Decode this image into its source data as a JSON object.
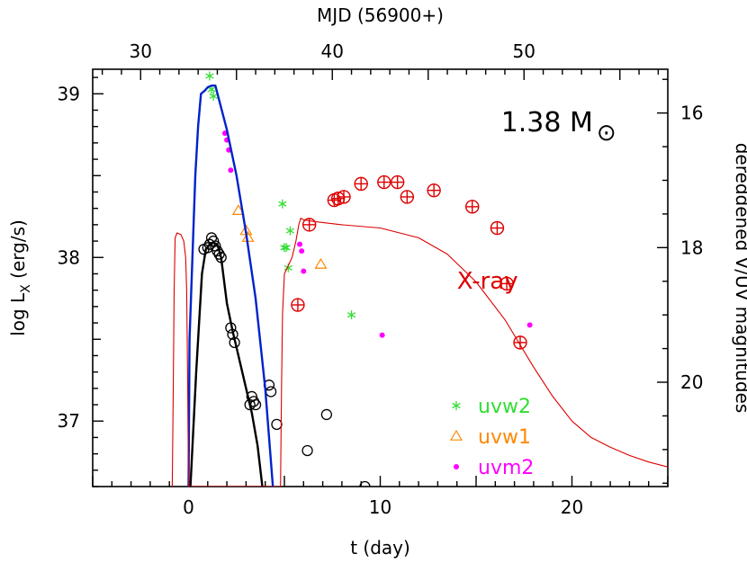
{
  "chart_data": {
    "type": "scatter",
    "xlabel": "t (day)",
    "ylabel_left": "log L_X (erg/s)",
    "ylabel_right": "dereddened V/UV magnitudes",
    "top_axis_label": "MJD (56900+)",
    "xlim": [
      -5,
      25
    ],
    "ylim_left": [
      36.6,
      39.15
    ],
    "ylim_right_mag": [
      21.55,
      15.35
    ],
    "x_ticks": [
      0,
      10,
      20
    ],
    "y_left_ticks": [
      37,
      38,
      39
    ],
    "y_right_ticks": [
      16,
      18,
      20
    ],
    "top_axis_offset": 32.5,
    "top_ticks": [
      30,
      40,
      50
    ],
    "mass_label": {
      "text": "1.38 M",
      "symbol": "⊙"
    },
    "xray_label": "X-ray",
    "legend": [
      {
        "name": "uvw2",
        "marker": "asterisk",
        "color": "#33dd33"
      },
      {
        "name": "uvw1",
        "marker": "triangle",
        "color": "#ff8800"
      },
      {
        "name": "uvm2",
        "marker": "dot",
        "color": "#ff00ff"
      }
    ],
    "series": [
      {
        "name": "X-ray",
        "kind": "points",
        "marker": "circle-plus",
        "color": "#dd0000",
        "axis": "left",
        "x": [
          5.7,
          6.3,
          7.6,
          7.8,
          8.1,
          9.0,
          10.2,
          10.9,
          11.4,
          12.8,
          14.8,
          16.1,
          16.6,
          17.3
        ],
        "y": [
          37.71,
          38.2,
          38.35,
          38.36,
          38.37,
          38.45,
          38.46,
          38.46,
          38.37,
          38.41,
          38.31,
          38.18,
          37.84,
          37.48
        ]
      },
      {
        "name": "V",
        "kind": "points",
        "marker": "circle",
        "color": "#000000",
        "axis": "left",
        "x": [
          0.8,
          1.0,
          1.1,
          1.2,
          1.3,
          1.4,
          1.5,
          1.6,
          1.7,
          2.2,
          2.3,
          2.4,
          3.2,
          3.3,
          3.4,
          3.5,
          4.2,
          4.3,
          4.6,
          6.2,
          7.2,
          9.2
        ],
        "y": [
          38.05,
          38.06,
          38.08,
          38.12,
          38.1,
          38.07,
          38.04,
          38.02,
          38.0,
          37.57,
          37.53,
          37.48,
          37.1,
          37.15,
          37.12,
          37.1,
          37.22,
          37.18,
          36.98,
          36.82,
          37.04,
          36.6
        ]
      },
      {
        "name": "uvw2",
        "kind": "points",
        "marker": "asterisk",
        "color": "#33dd33",
        "axis": "right_mag",
        "x": [
          1.1,
          1.2,
          1.3,
          4.9,
          5.0,
          5.1,
          5.3,
          5.2,
          8.5
        ],
        "y": [
          15.45,
          15.65,
          15.75,
          17.35,
          18.0,
          18.0,
          17.75,
          18.3,
          19.0
        ]
      },
      {
        "name": "uvw1",
        "kind": "points",
        "marker": "triangle",
        "color": "#ff8800",
        "axis": "right_mag",
        "x": [
          2.6,
          3.0,
          3.1,
          6.9
        ],
        "y": [
          17.45,
          17.75,
          17.85,
          18.25
        ]
      },
      {
        "name": "uvm2",
        "kind": "points",
        "marker": "dot",
        "color": "#ff00ff",
        "axis": "right_mag",
        "x": [
          1.9,
          2.0,
          2.1,
          2.2,
          5.8,
          5.9,
          6.0,
          10.1,
          17.8
        ],
        "y": [
          16.3,
          16.4,
          16.55,
          16.85,
          17.95,
          18.05,
          18.35,
          19.3,
          19.15
        ]
      },
      {
        "name": "",
        "kind": "line",
        "color": "#0022cc",
        "axis": "left",
        "x": [
          0.0,
          0.05,
          0.2,
          0.35,
          0.5,
          0.65,
          0.75,
          0.85,
          1.0,
          1.2,
          1.4,
          2.0,
          2.5,
          3.0,
          3.5,
          4.0,
          4.4
        ],
        "y": [
          36.6,
          37.5,
          38.0,
          38.5,
          38.8,
          39.0,
          39.01,
          39.02,
          39.04,
          39.05,
          39.05,
          38.78,
          38.5,
          38.15,
          37.75,
          37.2,
          36.6
        ]
      },
      {
        "name": "",
        "kind": "line",
        "color": "#000000",
        "axis": "left",
        "x": [
          0.1,
          0.4,
          0.7,
          0.9,
          1.1,
          1.3,
          1.5,
          1.7,
          2.0,
          2.3,
          2.6,
          3.0,
          3.3,
          3.6,
          3.85
        ],
        "y": [
          36.6,
          37.3,
          37.9,
          38.05,
          38.08,
          38.09,
          38.08,
          38.0,
          37.72,
          37.55,
          37.4,
          37.2,
          37.05,
          36.85,
          36.6
        ]
      },
      {
        "name": "",
        "kind": "line",
        "color": "#dd0000",
        "axis": "left",
        "x": [
          -0.85,
          -0.8,
          -0.75,
          -0.7,
          -0.6,
          -0.4,
          -0.25,
          -0.15,
          -0.1,
          -0.05,
          0.0,
          4.8,
          4.85,
          4.9,
          5.0,
          5.2,
          5.4,
          5.6,
          5.75,
          5.85,
          6.0,
          6.5,
          8.0,
          10.0,
          12.0,
          13.5,
          15.0,
          16.5,
          18.0,
          19.0,
          20.0,
          21.0,
          22.0,
          23.0,
          24.0,
          25.0
        ],
        "y": [
          36.6,
          37.2,
          37.8,
          38.12,
          38.15,
          38.14,
          38.1,
          38.0,
          37.8,
          37.3,
          36.6,
          36.6,
          37.2,
          37.65,
          37.9,
          37.95,
          38.0,
          38.1,
          38.2,
          38.24,
          38.23,
          38.22,
          38.2,
          38.18,
          38.12,
          38.02,
          37.85,
          37.62,
          37.33,
          37.15,
          37.0,
          36.9,
          36.84,
          36.79,
          36.75,
          36.72
        ]
      }
    ]
  }
}
